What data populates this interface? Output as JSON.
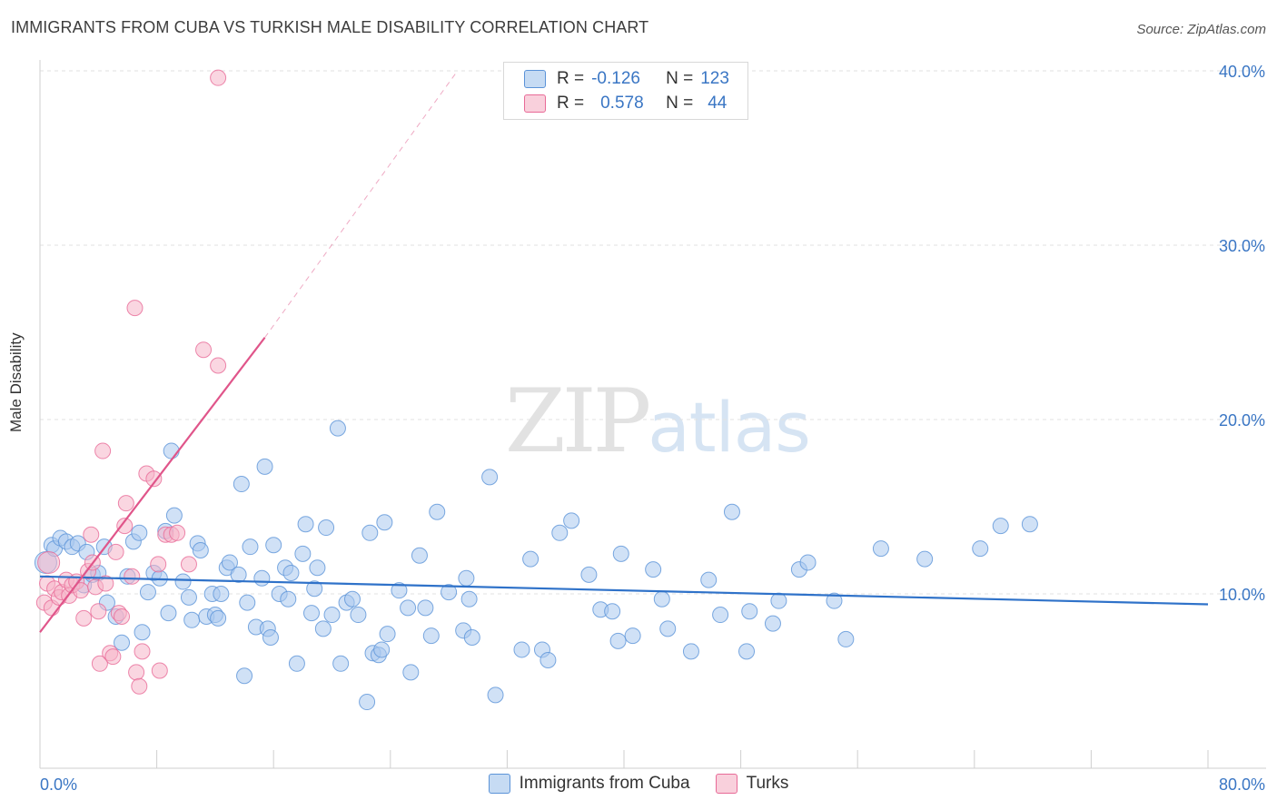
{
  "title": "IMMIGRANTS FROM CUBA VS TURKISH MALE DISABILITY CORRELATION CHART",
  "source": "Source: ZipAtlas.com",
  "watermark": {
    "zip": "ZIP",
    "atlas": "atlas"
  },
  "colors": {
    "blue": "#5b93d8",
    "blue_fill": "#a9c9ee",
    "pink": "#e86a97",
    "pink_fill": "#f5b4c9",
    "axis_text": "#3a76c4",
    "grid": "#e2e2e2"
  },
  "legend": {
    "rows": [
      {
        "r_label": "R =",
        "r": "-0.126",
        "n_label": "N =",
        "n": "123"
      },
      {
        "r_label": "R =",
        "r": "0.578",
        "n_label": "N =",
        "n": "44"
      }
    ]
  },
  "bottom_legend": [
    "Immigrants from Cuba",
    "Turks"
  ],
  "chart_data": {
    "type": "scatter",
    "xlabel": "",
    "ylabel": "Male Disability",
    "xlim": [
      0,
      80
    ],
    "ylim": [
      0,
      40
    ],
    "x_tick_labels": [
      "0.0%",
      "80.0%"
    ],
    "y_tick_labels": [
      "10.0%",
      "20.0%",
      "30.0%",
      "40.0%"
    ],
    "y_ticks": [
      10,
      20,
      30,
      40
    ],
    "grid": true,
    "series": [
      {
        "name": "Immigrants from Cuba",
        "trend": {
          "x0": 0,
          "y0": 11.0,
          "x1": 80,
          "y1": 9.4
        },
        "points": [
          [
            0.4,
            11.8
          ],
          [
            0.8,
            12.8
          ],
          [
            1.0,
            12.6
          ],
          [
            1.4,
            13.2
          ],
          [
            1.8,
            13.0
          ],
          [
            2.2,
            12.7
          ],
          [
            2.6,
            12.9
          ],
          [
            3.0,
            10.5
          ],
          [
            3.2,
            12.4
          ],
          [
            3.6,
            11.1
          ],
          [
            4.0,
            11.2
          ],
          [
            4.4,
            12.7
          ],
          [
            4.6,
            9.5
          ],
          [
            5.2,
            8.7
          ],
          [
            5.6,
            7.2
          ],
          [
            6.0,
            11.0
          ],
          [
            6.4,
            13.0
          ],
          [
            6.8,
            13.5
          ],
          [
            7.0,
            7.8
          ],
          [
            7.4,
            10.1
          ],
          [
            7.8,
            11.2
          ],
          [
            8.2,
            10.9
          ],
          [
            8.6,
            13.6
          ],
          [
            8.8,
            8.9
          ],
          [
            9.0,
            18.2
          ],
          [
            9.2,
            14.5
          ],
          [
            9.8,
            10.7
          ],
          [
            10.2,
            9.8
          ],
          [
            10.4,
            8.5
          ],
          [
            10.8,
            12.9
          ],
          [
            11.0,
            12.5
          ],
          [
            11.4,
            8.7
          ],
          [
            11.8,
            10.0
          ],
          [
            12.0,
            8.8
          ],
          [
            12.2,
            8.6
          ],
          [
            12.4,
            10.0
          ],
          [
            12.8,
            11.5
          ],
          [
            13.0,
            11.8
          ],
          [
            13.6,
            11.1
          ],
          [
            13.8,
            16.3
          ],
          [
            14.0,
            5.3
          ],
          [
            14.2,
            9.5
          ],
          [
            14.4,
            12.7
          ],
          [
            14.8,
            8.1
          ],
          [
            15.2,
            10.9
          ],
          [
            15.4,
            17.3
          ],
          [
            15.6,
            8.0
          ],
          [
            15.8,
            7.5
          ],
          [
            16.0,
            12.8
          ],
          [
            16.4,
            10.0
          ],
          [
            16.8,
            11.5
          ],
          [
            17.0,
            9.7
          ],
          [
            17.2,
            11.2
          ],
          [
            17.6,
            6.0
          ],
          [
            18.0,
            12.3
          ],
          [
            18.2,
            14.0
          ],
          [
            18.6,
            8.9
          ],
          [
            18.8,
            10.3
          ],
          [
            19.0,
            11.5
          ],
          [
            19.4,
            8.0
          ],
          [
            19.6,
            13.8
          ],
          [
            20.0,
            8.8
          ],
          [
            20.4,
            19.5
          ],
          [
            20.6,
            6.0
          ],
          [
            21.0,
            9.5
          ],
          [
            21.4,
            9.7
          ],
          [
            21.8,
            8.8
          ],
          [
            22.4,
            3.8
          ],
          [
            22.6,
            13.5
          ],
          [
            22.8,
            6.6
          ],
          [
            23.2,
            6.5
          ],
          [
            23.4,
            6.8
          ],
          [
            23.6,
            14.1
          ],
          [
            23.8,
            7.7
          ],
          [
            24.6,
            10.2
          ],
          [
            25.2,
            9.2
          ],
          [
            25.4,
            5.5
          ],
          [
            26.0,
            12.2
          ],
          [
            26.4,
            9.2
          ],
          [
            26.8,
            7.6
          ],
          [
            27.2,
            14.7
          ],
          [
            28.0,
            10.1
          ],
          [
            29.0,
            7.9
          ],
          [
            29.2,
            10.9
          ],
          [
            29.4,
            9.7
          ],
          [
            29.6,
            7.5
          ],
          [
            30.8,
            16.7
          ],
          [
            31.2,
            4.2
          ],
          [
            33.0,
            6.8
          ],
          [
            33.6,
            12.0
          ],
          [
            34.4,
            6.8
          ],
          [
            34.8,
            6.2
          ],
          [
            35.6,
            13.5
          ],
          [
            36.4,
            14.2
          ],
          [
            37.6,
            11.1
          ],
          [
            38.4,
            9.1
          ],
          [
            39.2,
            9.0
          ],
          [
            39.6,
            7.3
          ],
          [
            39.8,
            12.3
          ],
          [
            40.6,
            7.6
          ],
          [
            42.0,
            11.4
          ],
          [
            42.6,
            9.7
          ],
          [
            43.0,
            8.0
          ],
          [
            44.6,
            6.7
          ],
          [
            45.8,
            10.8
          ],
          [
            46.6,
            8.8
          ],
          [
            47.4,
            14.7
          ],
          [
            48.4,
            6.7
          ],
          [
            48.6,
            9.0
          ],
          [
            50.2,
            8.3
          ],
          [
            50.6,
            9.6
          ],
          [
            52.0,
            11.4
          ],
          [
            52.6,
            11.8
          ],
          [
            54.4,
            9.6
          ],
          [
            55.2,
            7.4
          ],
          [
            57.6,
            12.6
          ],
          [
            60.6,
            12.0
          ],
          [
            64.4,
            12.6
          ],
          [
            65.8,
            13.9
          ],
          [
            67.8,
            14.0
          ]
        ]
      },
      {
        "name": "Turks",
        "trend": {
          "x0": 0,
          "y0": 7.8,
          "x1": 15.4,
          "y1": 24.7,
          "dash_to": {
            "x": 28.6,
            "y": 40
          }
        },
        "points": [
          [
            0.3,
            9.5
          ],
          [
            0.5,
            10.6
          ],
          [
            0.8,
            9.2
          ],
          [
            1.0,
            10.3
          ],
          [
            1.3,
            9.8
          ],
          [
            1.5,
            10.1
          ],
          [
            1.8,
            10.8
          ],
          [
            2.0,
            9.9
          ],
          [
            2.2,
            10.5
          ],
          [
            2.5,
            10.7
          ],
          [
            2.8,
            10.2
          ],
          [
            3.0,
            8.6
          ],
          [
            3.3,
            11.3
          ],
          [
            3.5,
            13.4
          ],
          [
            3.6,
            11.8
          ],
          [
            3.8,
            10.4
          ],
          [
            4.0,
            9.0
          ],
          [
            4.1,
            6.0
          ],
          [
            4.3,
            18.2
          ],
          [
            4.5,
            10.6
          ],
          [
            4.8,
            6.6
          ],
          [
            5.0,
            6.4
          ],
          [
            5.2,
            12.4
          ],
          [
            5.4,
            8.9
          ],
          [
            5.6,
            8.7
          ],
          [
            5.8,
            13.9
          ],
          [
            5.9,
            15.2
          ],
          [
            6.3,
            11.0
          ],
          [
            6.5,
            26.4
          ],
          [
            6.6,
            5.5
          ],
          [
            6.8,
            4.7
          ],
          [
            7.0,
            6.7
          ],
          [
            7.3,
            16.9
          ],
          [
            7.8,
            16.6
          ],
          [
            8.1,
            11.7
          ],
          [
            8.2,
            5.6
          ],
          [
            8.6,
            13.4
          ],
          [
            9.0,
            13.4
          ],
          [
            9.4,
            13.5
          ],
          [
            10.2,
            11.7
          ],
          [
            11.2,
            24.0
          ],
          [
            12.2,
            23.1
          ],
          [
            12.2,
            39.6
          ],
          [
            0.6,
            11.8
          ]
        ]
      }
    ]
  }
}
